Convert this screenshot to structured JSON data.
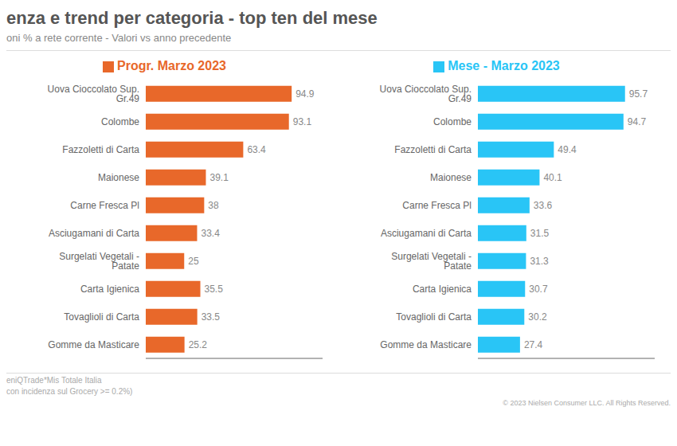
{
  "title": "enza e trend per categoria - top ten del mese",
  "subtitle": "oni % a rete corrente - Valori vs anno precedente",
  "annotations": [
    "eniQTrade*Mis Totale Italia",
    "con incidenza sul Grocery >= 0.2%)",
    "© 2023  Nielsen Consumer LLC. All Rights Reserved."
  ],
  "chart_data": [
    {
      "type": "bar",
      "orientation": "horizontal",
      "categories": [
        "Uova Cioccolato Sup. Gr.49",
        "Colombe",
        "Fazzoletti di Carta",
        "Maionese",
        "Carne Fresca Pl",
        "Asciugamani di Carta",
        "Surgelati Vegetali - Patate",
        "Carta Igienica",
        "Tovaglioli di Carta",
        "Gomme da Masticare"
      ],
      "series": [
        {
          "name": "Progr. Marzo 2023",
          "color": "#E8682A",
          "values": [
            94.9,
            93.1,
            63.4,
            39.1,
            38.0,
            33.4,
            25.0,
            35.5,
            33.5,
            25.2
          ]
        }
      ],
      "xlim": [
        0,
        115
      ],
      "legend": "top",
      "data_labels": true,
      "tick_labels": "y",
      "grid": false
    },
    {
      "type": "bar",
      "orientation": "horizontal",
      "categories": [
        "Uova Cioccolato Sup. Gr.49",
        "Colombe",
        "Fazzoletti di Carta",
        "Maionese",
        "Carne Fresca Pl",
        "Asciugamani di Carta",
        "Surgelati Vegetali - Patate",
        "Carta Igienica",
        "Tovaglioli di Carta",
        "Gomme da Masticare"
      ],
      "series": [
        {
          "name": "Mese - Marzo 2023",
          "color": "#29C5F6",
          "values": [
            95.7,
            94.7,
            49.4,
            40.1,
            33.6,
            31.5,
            31.3,
            30.7,
            30.2,
            27.4
          ]
        }
      ],
      "xlim": [
        0,
        115
      ],
      "legend": "top",
      "data_labels": true,
      "tick_labels": "y",
      "grid": false
    }
  ]
}
